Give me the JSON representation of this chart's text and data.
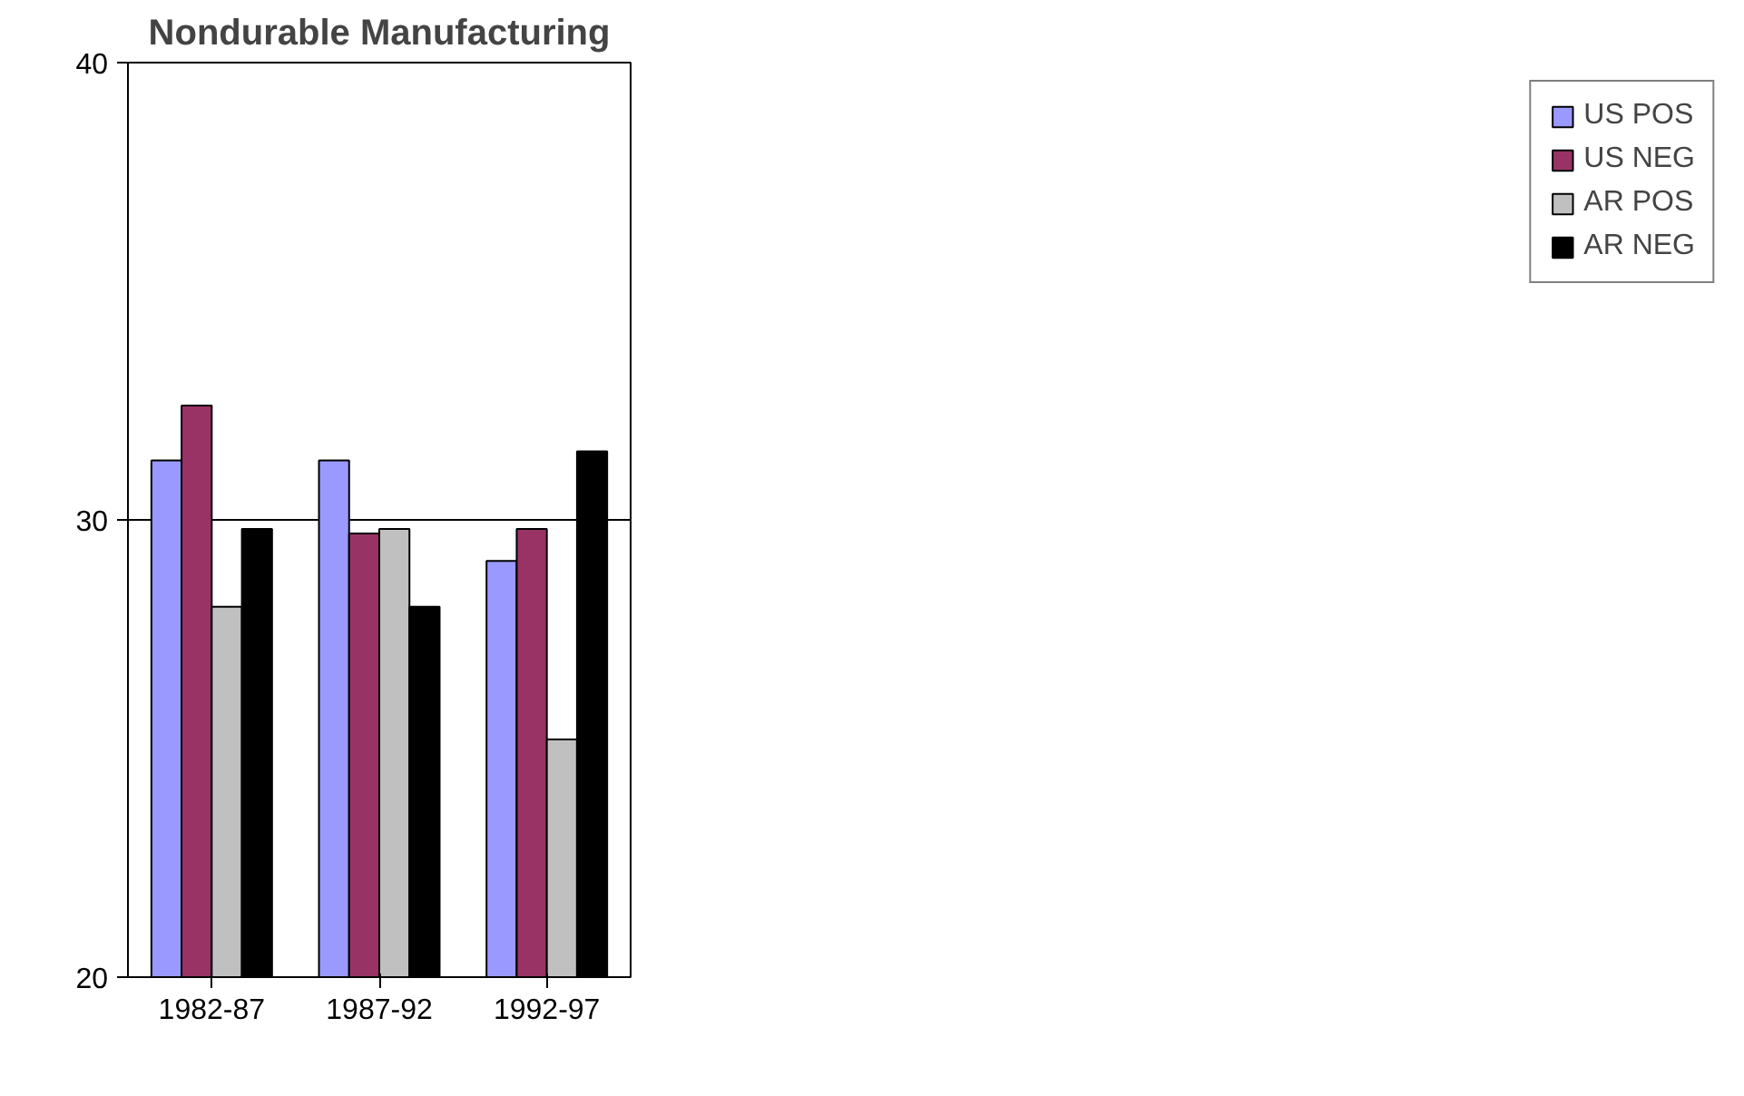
{
  "chart_data": {
    "type": "bar",
    "title": "Nondurable Manufacturing",
    "categories": [
      "1982-87",
      "1987-92",
      "1992-97"
    ],
    "series": [
      {
        "name": "US POS",
        "color": "#9999ff",
        "values": [
          31.3,
          31.3,
          29.1
        ]
      },
      {
        "name": "US NEG",
        "color": "#993366",
        "values": [
          32.5,
          29.7,
          29.8
        ]
      },
      {
        "name": "AR POS",
        "color": "#c0c0c0",
        "values": [
          28.1,
          29.8,
          25.2
        ]
      },
      {
        "name": "AR NEG",
        "color": "#000000",
        "values": [
          29.8,
          28.1,
          31.5
        ]
      }
    ],
    "ylim": [
      20,
      40
    ],
    "yticks": [
      20,
      30,
      40
    ],
    "grid": "y",
    "legend": "right"
  }
}
